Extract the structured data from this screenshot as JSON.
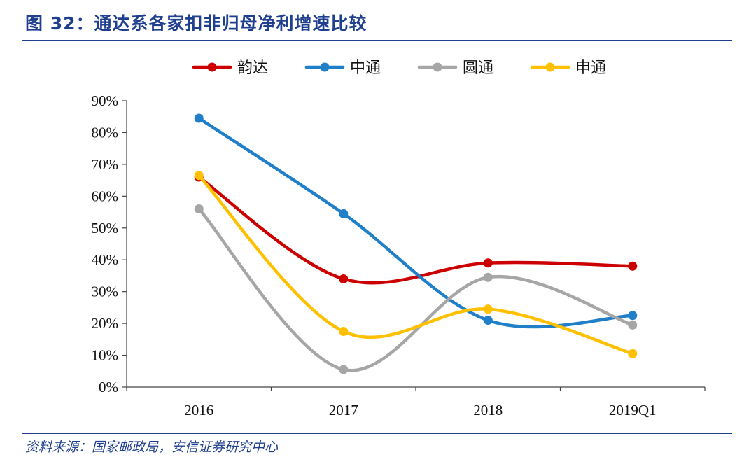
{
  "title": "图 32：通达系各家扣非归母净利增速比较",
  "source": "资料来源：国家邮政局，安信证券研究中心",
  "chart_data": {
    "type": "line",
    "categories": [
      "2016",
      "2017",
      "2018",
      "2019Q1"
    ],
    "series": [
      {
        "name": "韵达",
        "color": "#cc0000",
        "values": [
          0.66,
          0.34,
          0.39,
          0.38
        ]
      },
      {
        "name": "中通",
        "color": "#1f7fc8",
        "values": [
          0.845,
          0.545,
          0.21,
          0.225
        ]
      },
      {
        "name": "圆通",
        "color": "#a6a6a6",
        "values": [
          0.56,
          0.055,
          0.345,
          0.195
        ]
      },
      {
        "name": "申通",
        "color": "#ffc000",
        "values": [
          0.665,
          0.175,
          0.245,
          0.105
        ]
      }
    ],
    "ylim": [
      0,
      0.9
    ],
    "yticks": [
      "0%",
      "10%",
      "20%",
      "30%",
      "40%",
      "50%",
      "60%",
      "70%",
      "80%",
      "90%"
    ],
    "legend_position": "top-center",
    "grid": false,
    "smooth": true
  }
}
